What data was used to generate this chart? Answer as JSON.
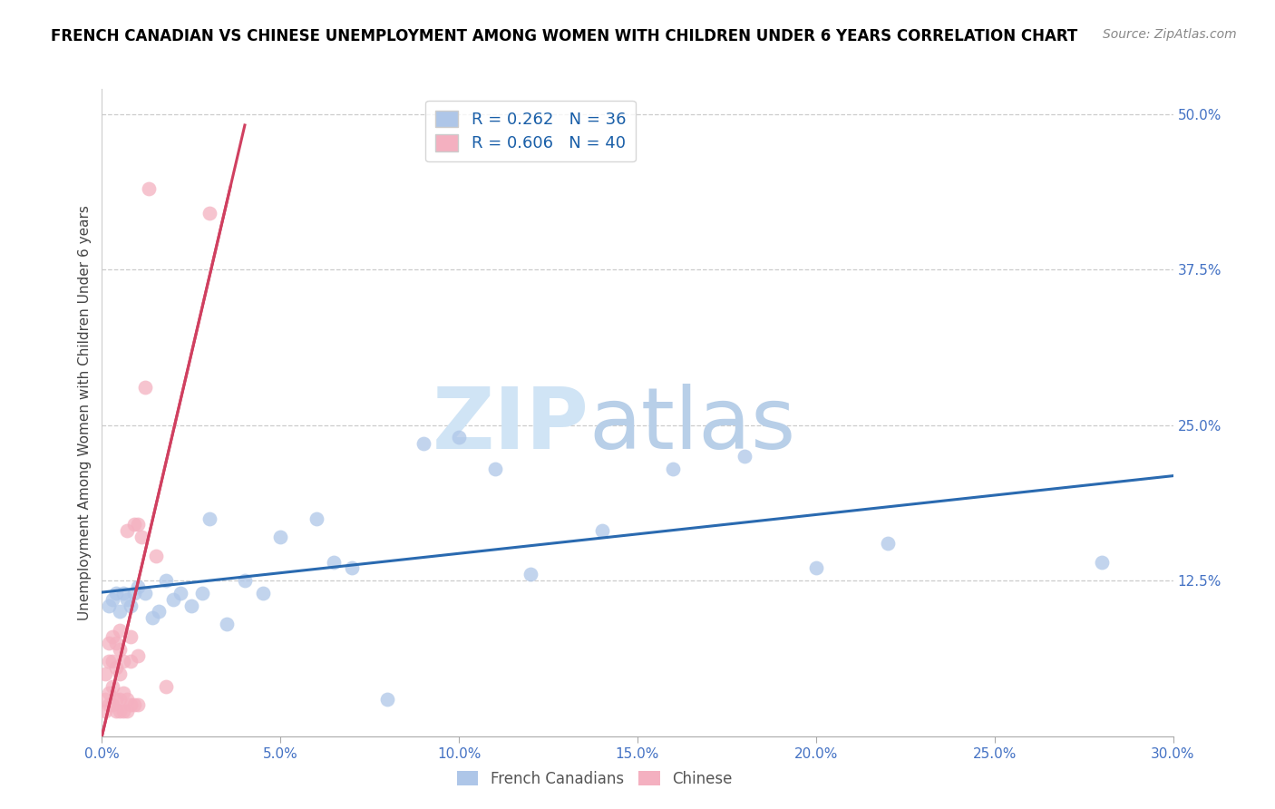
{
  "title": "FRENCH CANADIAN VS CHINESE UNEMPLOYMENT AMONG WOMEN WITH CHILDREN UNDER 6 YEARS CORRELATION CHART",
  "source": "Source: ZipAtlas.com",
  "ylabel": "Unemployment Among Women with Children Under 6 years",
  "xlim": [
    0.0,
    0.3
  ],
  "ylim": [
    0.0,
    0.52
  ],
  "french_R": 0.262,
  "french_N": 36,
  "chinese_R": 0.606,
  "chinese_N": 40,
  "french_color": "#aec6e8",
  "french_line_color": "#2a6ab0",
  "chinese_color": "#f4b0c0",
  "chinese_line_color": "#d04060",
  "french_x": [
    0.002,
    0.003,
    0.004,
    0.005,
    0.006,
    0.007,
    0.008,
    0.009,
    0.01,
    0.012,
    0.014,
    0.016,
    0.018,
    0.02,
    0.022,
    0.025,
    0.028,
    0.03,
    0.035,
    0.04,
    0.045,
    0.05,
    0.06,
    0.065,
    0.07,
    0.08,
    0.09,
    0.1,
    0.11,
    0.12,
    0.14,
    0.16,
    0.18,
    0.2,
    0.22,
    0.28
  ],
  "french_y": [
    0.105,
    0.11,
    0.115,
    0.1,
    0.115,
    0.11,
    0.105,
    0.115,
    0.12,
    0.115,
    0.095,
    0.1,
    0.125,
    0.11,
    0.115,
    0.105,
    0.115,
    0.175,
    0.09,
    0.125,
    0.115,
    0.16,
    0.175,
    0.14,
    0.135,
    0.03,
    0.235,
    0.24,
    0.215,
    0.13,
    0.165,
    0.215,
    0.225,
    0.135,
    0.155,
    0.14
  ],
  "chinese_x": [
    0.001,
    0.001,
    0.001,
    0.002,
    0.002,
    0.002,
    0.002,
    0.003,
    0.003,
    0.003,
    0.003,
    0.004,
    0.004,
    0.004,
    0.004,
    0.005,
    0.005,
    0.005,
    0.005,
    0.005,
    0.006,
    0.006,
    0.006,
    0.007,
    0.007,
    0.007,
    0.008,
    0.008,
    0.008,
    0.009,
    0.009,
    0.01,
    0.01,
    0.01,
    0.011,
    0.012,
    0.013,
    0.015,
    0.018,
    0.03
  ],
  "chinese_y": [
    0.02,
    0.03,
    0.05,
    0.025,
    0.035,
    0.06,
    0.075,
    0.025,
    0.04,
    0.06,
    0.08,
    0.02,
    0.03,
    0.055,
    0.075,
    0.02,
    0.03,
    0.05,
    0.07,
    0.085,
    0.02,
    0.035,
    0.06,
    0.02,
    0.03,
    0.165,
    0.025,
    0.06,
    0.08,
    0.025,
    0.17,
    0.025,
    0.065,
    0.17,
    0.16,
    0.28,
    0.44,
    0.145,
    0.04,
    0.42
  ],
  "ytick_vals": [
    0.125,
    0.25,
    0.375,
    0.5
  ],
  "ytick_labels": [
    "12.5%",
    "25.0%",
    "37.5%",
    "50.0%"
  ],
  "xtick_vals": [
    0.0,
    0.05,
    0.1,
    0.15,
    0.2,
    0.25,
    0.3
  ],
  "xtick_labels": [
    "0.0%",
    "5.0%",
    "10.0%",
    "15.0%",
    "20.0%",
    "25.0%",
    "30.0%"
  ],
  "title_fontsize": 12,
  "source_fontsize": 10,
  "tick_fontsize": 11,
  "legend_fontsize": 13,
  "ylabel_fontsize": 11,
  "tick_color": "#4472c4",
  "title_color": "#000000",
  "source_color": "#888888",
  "ylabel_color": "#444444",
  "legend_text_color": "#1a5fa8",
  "grid_color": "#cccccc",
  "watermark_zip_color": "#d0e4f5",
  "watermark_atlas_color": "#b8cfe8"
}
